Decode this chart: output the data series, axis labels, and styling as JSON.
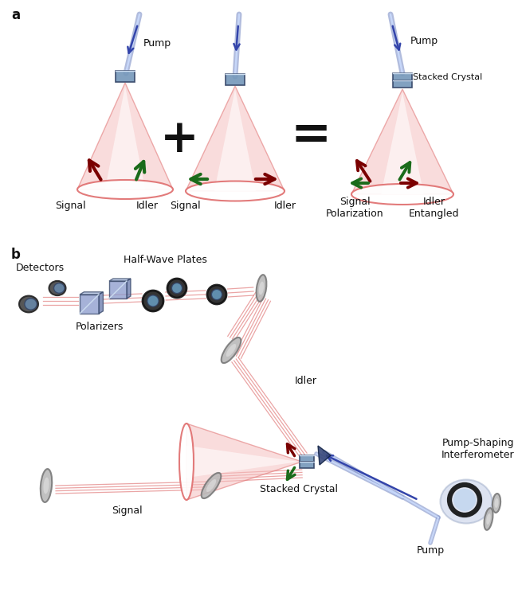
{
  "bg_color": "#ffffff",
  "label_a": "a",
  "label_b": "b",
  "panel_a": {
    "pump_label": "Pump",
    "crystal1_signal": "Signal",
    "crystal1_idler": "Idler",
    "crystal2_signal": "Signal",
    "crystal2_idler": "Idler",
    "crystal3_pump": "Pump",
    "crystal3_stacked": "Stacked Crystal",
    "crystal3_signal": "Signal\nPolarization",
    "crystal3_idler": "Idler\nEntangled",
    "plus_sign": "+",
    "equals_sign": "="
  },
  "panel_b": {
    "label_detectors": "Detectors",
    "label_polarizers": "Polarizers",
    "label_halfwave": "Half-Wave Plates",
    "label_idler": "Idler",
    "label_signal": "Signal",
    "label_stacked": "Stacked Crystal",
    "label_pump": "Pump",
    "label_interferometer": "Pump-Shaping\nInterferometer"
  },
  "cone_fill": "#f5c0c0",
  "cone_edge": "#e07070",
  "cone_inner": "#ffffff",
  "arrow_dark_red": "#7a0000",
  "arrow_green": "#1a6b1a",
  "crystal_face": "#7799bb",
  "crystal_edge": "#334466",
  "pump_beam_color": "#8899cc",
  "pump_beam_light": "#ccddff",
  "mirror_face": "#b8b8b8",
  "mirror_edge": "#777777",
  "beam_line_color": "#e08888",
  "text_color": "#111111",
  "font_size": 9,
  "font_size_ab": 12
}
